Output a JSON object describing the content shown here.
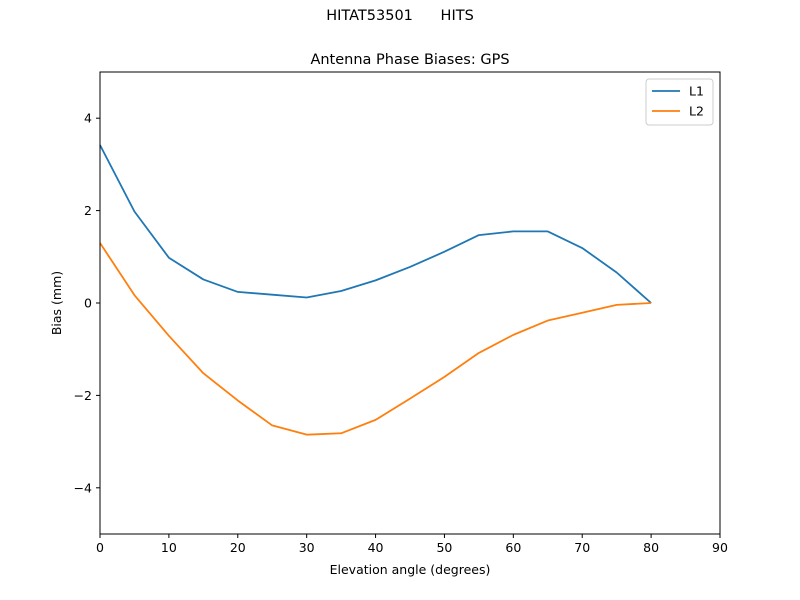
{
  "figure": {
    "suptitle": "HITAT53501      HITS"
  },
  "chart_data": {
    "type": "line",
    "title": "Antenna Phase Biases: GPS",
    "xlabel": "Elevation angle (degrees)",
    "ylabel": "Bias (mm)",
    "xlim": [
      0,
      90
    ],
    "ylim": [
      -5,
      5
    ],
    "xticks": [
      0,
      10,
      20,
      30,
      40,
      50,
      60,
      70,
      80,
      90
    ],
    "yticks": [
      -4,
      -2,
      0,
      2,
      4
    ],
    "grid": false,
    "legend_position": "top-right",
    "x": [
      0,
      5,
      10,
      15,
      20,
      25,
      30,
      35,
      40,
      45,
      50,
      55,
      60,
      65,
      70,
      75,
      80
    ],
    "series": [
      {
        "name": "L1",
        "color": "#1f77b4",
        "values": [
          3.42,
          1.98,
          0.98,
          0.51,
          0.24,
          0.18,
          0.12,
          0.26,
          0.49,
          0.78,
          1.11,
          1.47,
          1.55,
          1.55,
          1.19,
          0.66,
          0.0
        ]
      },
      {
        "name": "L2",
        "color": "#ff7f0e",
        "values": [
          1.3,
          0.17,
          -0.71,
          -1.52,
          -2.11,
          -2.65,
          -2.85,
          -2.82,
          -2.53,
          -2.07,
          -1.6,
          -1.08,
          -0.69,
          -0.38,
          -0.21,
          -0.04,
          0.0
        ]
      }
    ]
  }
}
